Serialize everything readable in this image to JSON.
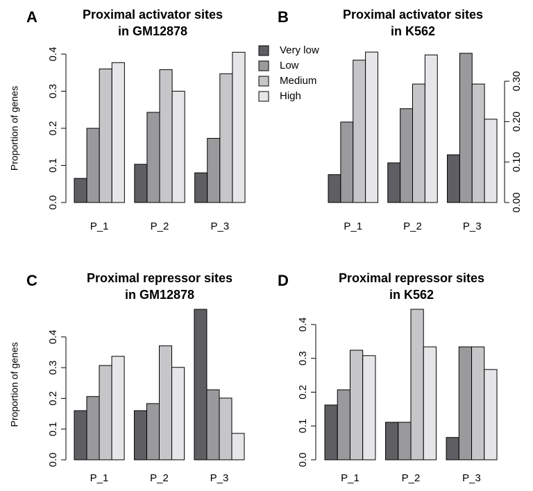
{
  "chart_data": [
    {
      "type": "bar",
      "label": "A",
      "title": [
        "Proximal activator sites",
        "in GM12878"
      ],
      "y_label": "Proportion of genes",
      "categories": [
        "P_1",
        "P_2",
        "P_3"
      ],
      "series": [
        {
          "name": "Very low",
          "color": "#5f5f63",
          "values": [
            0.065,
            0.103,
            0.08
          ]
        },
        {
          "name": "Low",
          "color": "#9a9a9d",
          "values": [
            0.2,
            0.243,
            0.173
          ]
        },
        {
          "name": "Medium",
          "color": "#c6c6c8",
          "values": [
            0.36,
            0.358,
            0.347
          ]
        },
        {
          "name": "High",
          "color": "#e6e6e8",
          "values": [
            0.377,
            0.3,
            0.405
          ]
        }
      ],
      "ylim": [
        0,
        0.4
      ],
      "yticks": [
        {
          "value": 0,
          "label": "0.0"
        },
        0.1,
        0.2,
        0.3,
        0.4
      ],
      "y_axis_side": "left"
    },
    {
      "type": "bar",
      "label": "B",
      "title": [
        "Proximal activator sites",
        "in K562"
      ],
      "categories": [
        "P_1",
        "P_2",
        "P_3"
      ],
      "series": [
        {
          "color": "#5f5f63",
          "values": [
            0.069,
            0.098,
            0.118
          ]
        },
        {
          "color": "#9a9a9d",
          "values": [
            0.199,
            0.232,
            0.369
          ]
        },
        {
          "color": "#c6c6c8",
          "values": [
            0.352,
            0.293,
            0.293
          ]
        },
        {
          "color": "#e6e6e8",
          "values": [
            0.372,
            0.365,
            0.206
          ]
        }
      ],
      "ylim": [
        0,
        0.367
      ],
      "yticks": [
        {
          "value": 0,
          "label": "0.00"
        },
        {
          "value": 0.1,
          "label": "0.10"
        },
        {
          "value": 0.2,
          "label": "0.20"
        },
        {
          "value": 0.3,
          "label": "0.30"
        }
      ],
      "y_axis_side": "right"
    },
    {
      "type": "bar",
      "label": "C",
      "title": [
        "Proximal repressor sites",
        "in GM12878"
      ],
      "y_label": "Proportion of genes",
      "categories": [
        "P_1",
        "P_2",
        "P_3"
      ],
      "series": [
        {
          "color": "#5f5f63",
          "values": [
            0.16,
            0.16,
            0.49
          ]
        },
        {
          "color": "#9a9a9d",
          "values": [
            0.206,
            0.183,
            0.228
          ]
        },
        {
          "color": "#c6c6c8",
          "values": [
            0.307,
            0.371,
            0.201
          ]
        },
        {
          "color": "#e6e6e8",
          "values": [
            0.337,
            0.301,
            0.086
          ]
        }
      ],
      "ylim": [
        0,
        0.49
      ],
      "yticks": [
        {
          "value": 0,
          "label": "0.0"
        },
        0.1,
        0.2,
        0.3,
        0.4
      ],
      "y_axis_side": "left"
    },
    {
      "type": "bar",
      "label": "D",
      "title": [
        "Proximal repressor sites",
        "in K562"
      ],
      "categories": [
        "P_1",
        "P_2",
        "P_3"
      ],
      "series": [
        {
          "color": "#5f5f63",
          "values": [
            0.162,
            0.111,
            0.066
          ]
        },
        {
          "color": "#9a9a9d",
          "values": [
            0.207,
            0.111,
            0.334
          ]
        },
        {
          "color": "#c6c6c8",
          "values": [
            0.324,
            0.445,
            0.334
          ]
        },
        {
          "color": "#e6e6e8",
          "values": [
            0.308,
            0.334,
            0.267
          ]
        }
      ],
      "ylim": [
        0,
        0.445
      ],
      "yticks": [
        {
          "value": 0,
          "label": "0.0"
        },
        0.1,
        0.2,
        0.3,
        0.4
      ],
      "y_axis_side": "left"
    }
  ]
}
